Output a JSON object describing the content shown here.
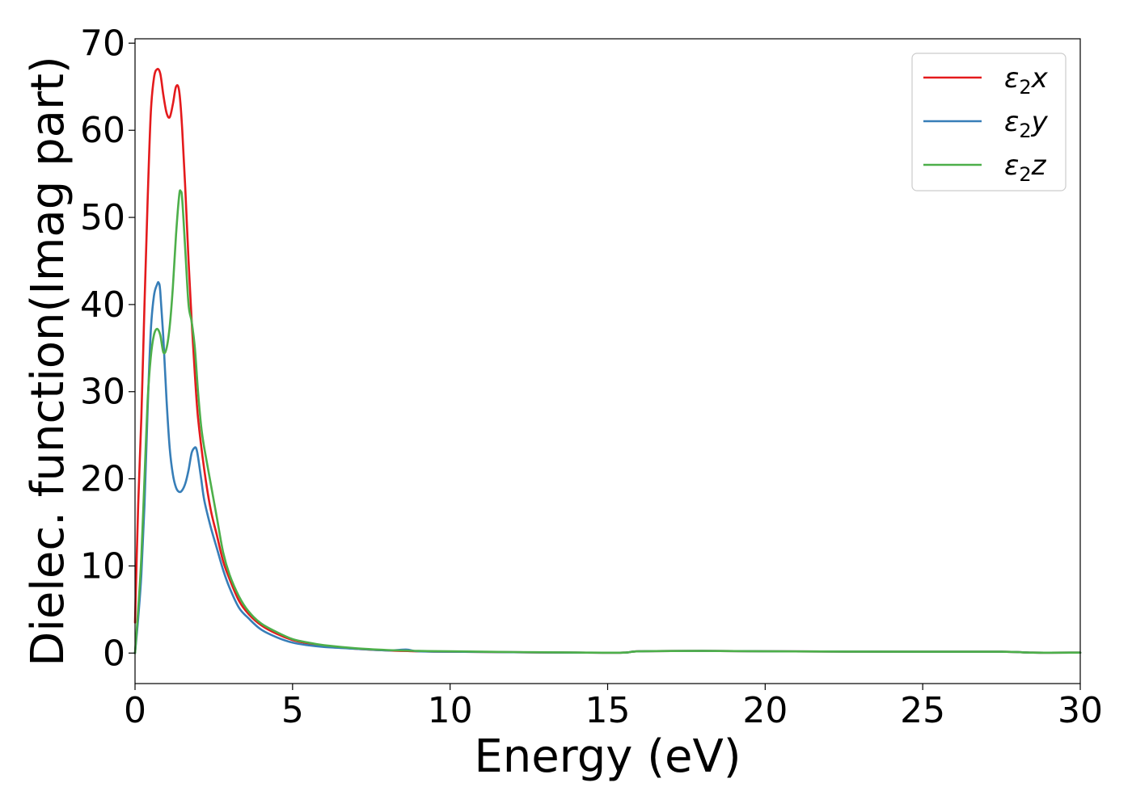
{
  "chart_data": {
    "type": "line",
    "xlabel": "Energy (eV)",
    "ylabel": "Dielec. function(Imag part)",
    "xlim": [
      0,
      30
    ],
    "ylim": [
      -3.5,
      70.5
    ],
    "xticks": [
      0,
      5,
      10,
      15,
      20,
      25,
      30
    ],
    "yticks": [
      0,
      10,
      20,
      30,
      40,
      50,
      60,
      70
    ],
    "grid": false,
    "legend_position": "top-right",
    "series": [
      {
        "name": "ε2x",
        "legend_base": "ε",
        "legend_sub": "2",
        "legend_suffix": "x",
        "color": "#e41a1c",
        "x": [
          0,
          0.1,
          0.2,
          0.3,
          0.4,
          0.5,
          0.6,
          0.7,
          0.8,
          0.9,
          1.0,
          1.1,
          1.2,
          1.3,
          1.4,
          1.5,
          1.6,
          1.7,
          1.8,
          1.9,
          2.0,
          2.2,
          2.4,
          2.6,
          2.8,
          3.0,
          3.3,
          3.6,
          4.0,
          4.5,
          5.0,
          5.5,
          6.0,
          7.0,
          8.0,
          9.0,
          10.0,
          12.0,
          14.0,
          15.5,
          16.0,
          18.0,
          20.0,
          25.0,
          27.5,
          28.5,
          30.0
        ],
        "y": [
          3.5,
          17,
          27,
          40,
          52,
          62,
          66,
          67,
          66.5,
          64,
          62,
          61.5,
          63,
          65,
          64.5,
          60,
          53,
          45,
          38,
          32,
          27,
          21,
          16.5,
          13.5,
          10.5,
          8.5,
          6,
          4.5,
          3.2,
          2.2,
          1.5,
          1.1,
          0.8,
          0.5,
          0.3,
          0.2,
          0.15,
          0.1,
          0.05,
          0.05,
          0.2,
          0.25,
          0.2,
          0.15,
          0.15,
          0.05,
          0.05
        ]
      },
      {
        "name": "ε2y",
        "legend_base": "ε",
        "legend_sub": "2",
        "legend_suffix": "y",
        "color": "#377eb8",
        "x": [
          0,
          0.1,
          0.2,
          0.3,
          0.4,
          0.5,
          0.6,
          0.7,
          0.75,
          0.8,
          0.9,
          1.0,
          1.1,
          1.2,
          1.3,
          1.4,
          1.5,
          1.6,
          1.7,
          1.8,
          1.9,
          1.95,
          2.0,
          2.1,
          2.2,
          2.4,
          2.6,
          2.8,
          3.0,
          3.3,
          3.6,
          4.0,
          4.5,
          5.0,
          5.5,
          6.0,
          7.0,
          8.0,
          8.6,
          9.0,
          10.0,
          12.0,
          14.0,
          15.5,
          16.0,
          18.0,
          20.0,
          25.0,
          27.5,
          28.5,
          30.0
        ],
        "y": [
          0,
          4,
          9,
          17,
          28,
          37,
          41,
          42.3,
          42.5,
          41.5,
          36,
          29,
          23.5,
          20.5,
          19,
          18.5,
          18.7,
          19.5,
          21,
          23,
          23.6,
          23.4,
          22.5,
          20,
          17.5,
          14.5,
          12,
          9.5,
          7.5,
          5.2,
          4,
          2.7,
          1.8,
          1.2,
          0.9,
          0.7,
          0.5,
          0.3,
          0.4,
          0.2,
          0.15,
          0.1,
          0.05,
          0.05,
          0.2,
          0.25,
          0.2,
          0.15,
          0.15,
          0.05,
          0.05
        ]
      },
      {
        "name": "ε2z",
        "legend_base": "ε",
        "legend_sub": "2",
        "legend_suffix": "z",
        "color": "#4daf4a",
        "x": [
          0,
          0.1,
          0.2,
          0.3,
          0.4,
          0.5,
          0.6,
          0.7,
          0.8,
          0.9,
          1.0,
          1.1,
          1.2,
          1.3,
          1.4,
          1.45,
          1.5,
          1.6,
          1.7,
          1.8,
          1.9,
          2.0,
          2.1,
          2.2,
          2.4,
          2.6,
          2.8,
          3.0,
          3.3,
          3.6,
          4.0,
          4.5,
          5.0,
          5.5,
          6.0,
          7.0,
          8.0,
          9.0,
          10.0,
          12.0,
          14.0,
          15.5,
          16.0,
          18.0,
          20.0,
          25.0,
          27.5,
          28.5,
          30.0
        ],
        "y": [
          0,
          5,
          11,
          20,
          29,
          34,
          36.5,
          37.2,
          36.5,
          34.5,
          35,
          37.5,
          42,
          48,
          52.5,
          53,
          52,
          46,
          40,
          38,
          35,
          30,
          26,
          23.5,
          19.5,
          15.5,
          11.5,
          9,
          6.5,
          4.8,
          3.4,
          2.4,
          1.6,
          1.2,
          0.9,
          0.55,
          0.35,
          0.25,
          0.2,
          0.12,
          0.06,
          0.05,
          0.2,
          0.25,
          0.2,
          0.15,
          0.15,
          0.05,
          0.05
        ]
      }
    ]
  }
}
